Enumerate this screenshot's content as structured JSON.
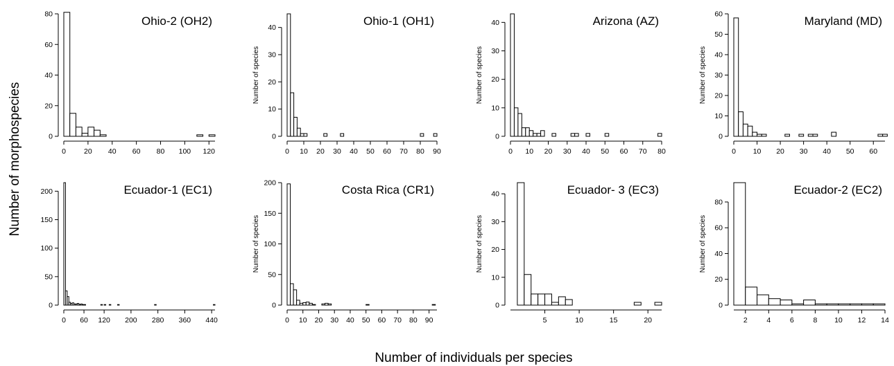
{
  "figure": {
    "common_ylabel": "Number of morphospecies",
    "common_xlabel": "Number of individuals per species"
  },
  "chart_data": [
    {
      "type": "bar",
      "title": "Ohio-2 (OH2)",
      "ylabel": "",
      "xlabel": "",
      "xlim": [
        0,
        125
      ],
      "ylim": [
        0,
        80
      ],
      "xticks": [
        0,
        20,
        40,
        60,
        80,
        100,
        120
      ],
      "yticks": [
        0,
        20,
        40,
        60,
        80
      ],
      "bin_width": 5,
      "bins": [
        0,
        5,
        10,
        15,
        20,
        25,
        30,
        35,
        40,
        45,
        50,
        55,
        60,
        65,
        70,
        75,
        80,
        85,
        90,
        95,
        100,
        105,
        110,
        115,
        120
      ],
      "values": [
        81,
        15,
        6,
        2,
        6,
        4,
        1,
        0,
        0,
        0,
        0,
        0,
        0,
        0,
        0,
        0,
        0,
        0,
        0,
        0,
        0,
        0,
        1,
        0,
        1
      ]
    },
    {
      "type": "bar",
      "title": "Ohio-1 (OH1)",
      "ylabel": "Number of species",
      "xlabel": "",
      "xlim": [
        0,
        90
      ],
      "ylim": [
        0,
        45
      ],
      "xticks": [
        0,
        10,
        20,
        30,
        40,
        50,
        60,
        70,
        80,
        90
      ],
      "yticks": [
        0,
        10,
        20,
        30,
        40
      ],
      "bin_width": 2,
      "bins": [
        0,
        2,
        4,
        6,
        8,
        10,
        22,
        32,
        80,
        88
      ],
      "values": [
        45,
        16,
        7,
        3,
        1,
        1,
        1,
        1,
        1,
        1
      ]
    },
    {
      "type": "bar",
      "title": "Arizona (AZ)",
      "ylabel": "Number of species",
      "xlabel": "",
      "xlim": [
        0,
        80
      ],
      "ylim": [
        0,
        43
      ],
      "xticks": [
        0,
        10,
        20,
        30,
        40,
        50,
        60,
        70,
        80
      ],
      "yticks": [
        0,
        10,
        20,
        30,
        40
      ],
      "bin_width": 2,
      "bins": [
        0,
        2,
        4,
        6,
        8,
        10,
        12,
        14,
        16,
        22,
        32,
        34,
        40,
        50,
        78
      ],
      "values": [
        43,
        10,
        8,
        3,
        3,
        2,
        1,
        1,
        2,
        1,
        1,
        1,
        1,
        1,
        1
      ]
    },
    {
      "type": "bar",
      "title": "Maryland (MD)",
      "ylabel": "Number of species",
      "xlabel": "",
      "xlim": [
        0,
        65
      ],
      "ylim": [
        0,
        60
      ],
      "xticks": [
        0,
        10,
        20,
        30,
        40,
        50,
        60
      ],
      "yticks": [
        0,
        10,
        20,
        30,
        40,
        50,
        60
      ],
      "bin_width": 2,
      "bins": [
        0,
        2,
        4,
        6,
        8,
        10,
        12,
        22,
        28,
        32,
        34,
        42,
        62,
        64
      ],
      "values": [
        58,
        12,
        6,
        5,
        2,
        1,
        1,
        1,
        1,
        1,
        1,
        2,
        1,
        1
      ]
    },
    {
      "type": "bar",
      "title": "Ecuador-1 (EC1)",
      "ylabel": "",
      "xlabel": "",
      "xlim": [
        0,
        450
      ],
      "ylim": [
        0,
        215
      ],
      "xticks": [
        0,
        60,
        120,
        200,
        280,
        360,
        440
      ],
      "yticks": [
        0,
        50,
        100,
        150,
        200
      ],
      "bin_width": 5,
      "bins": [
        0,
        5,
        10,
        15,
        20,
        25,
        30,
        35,
        40,
        45,
        50,
        55,
        60,
        110,
        120,
        135,
        160,
        270,
        445
      ],
      "values": [
        215,
        25,
        15,
        5,
        3,
        4,
        2,
        2,
        3,
        1,
        2,
        1,
        1,
        1,
        1,
        1,
        1,
        1,
        1
      ]
    },
    {
      "type": "bar",
      "title": "Costa Rica (CR1)",
      "ylabel": "Number of species",
      "xlabel": "",
      "xlim": [
        0,
        95
      ],
      "ylim": [
        0,
        200
      ],
      "xticks": [
        0,
        10,
        20,
        30,
        40,
        50,
        60,
        70,
        80,
        90
      ],
      "yticks": [
        0,
        50,
        100,
        150,
        200
      ],
      "bin_width": 2,
      "bins": [
        0,
        2,
        4,
        6,
        8,
        10,
        12,
        14,
        16,
        22,
        24,
        26,
        50,
        92
      ],
      "values": [
        198,
        35,
        25,
        8,
        3,
        4,
        5,
        3,
        1,
        2,
        3,
        2,
        1,
        1
      ]
    },
    {
      "type": "bar",
      "title": "Ecuador- 3 (EC3)",
      "ylabel": "Number of species",
      "xlabel": "",
      "xlim": [
        0,
        22
      ],
      "ylim": [
        0,
        44
      ],
      "xticks": [
        5,
        10,
        15,
        20
      ],
      "yticks": [
        0,
        10,
        20,
        30,
        40
      ],
      "bin_width": 1,
      "bins": [
        1,
        2,
        3,
        4,
        5,
        6,
        7,
        8,
        18,
        21
      ],
      "values": [
        44,
        11,
        4,
        4,
        4,
        1,
        3,
        2,
        1,
        1
      ]
    },
    {
      "type": "bar",
      "title": "Ecuador-2 (EC2)",
      "ylabel": "Number of species",
      "xlabel": "",
      "xlim": [
        1,
        14
      ],
      "ylim": [
        0,
        95
      ],
      "xticks": [
        2,
        4,
        6,
        8,
        10,
        12,
        14
      ],
      "yticks": [
        0,
        20,
        40,
        60,
        80
      ],
      "bin_width": 1,
      "bins": [
        1,
        2,
        3,
        4,
        5,
        6,
        7,
        8,
        9,
        10,
        11,
        12,
        13
      ],
      "values": [
        95,
        14,
        8,
        5,
        4,
        1,
        4,
        1,
        1,
        1,
        1,
        1,
        1
      ]
    }
  ]
}
